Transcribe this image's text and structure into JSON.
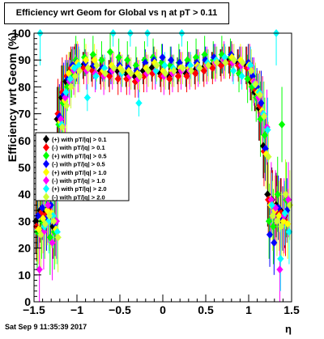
{
  "title": "Efficiency wrt Geom for Global vs   η at pT > 0.11",
  "timestamp": "Sat Sep  9 11:35:39 2017",
  "chart_data": {
    "type": "scatter",
    "title": "Efficiency wrt Geom for Global vs   η at pT > 0.11",
    "xlabel": "η",
    "ylabel": "Efficiency wrt Geom (%)",
    "xlim": [
      -1.5,
      1.5
    ],
    "ylim": [
      0,
      100
    ],
    "xticks": [
      "−1.5",
      "−1",
      "−0.5",
      "0",
      "0.5",
      "1",
      "1.5"
    ],
    "yticks": [
      "0",
      "10",
      "20",
      "30",
      "40",
      "50",
      "60",
      "70",
      "80",
      "90",
      "100"
    ],
    "grid": false,
    "legend_position": "middle-left",
    "series": [
      {
        "name": "(+) with pT/|q| > 0.1",
        "color": "#000000",
        "marker": "circle",
        "x": [
          -1.45,
          -1.4,
          -1.35,
          -1.3,
          -1.25,
          -1.2,
          -1.15,
          -1.1,
          -1.05,
          -1.0,
          -0.9,
          -0.8,
          -0.7,
          -0.6,
          -0.5,
          -0.4,
          -0.3,
          -0.2,
          -0.1,
          0.0,
          0.1,
          0.2,
          0.3,
          0.4,
          0.5,
          0.6,
          0.7,
          0.8,
          0.9,
          1.0,
          1.05,
          1.1,
          1.15,
          1.2,
          1.25,
          1.3,
          1.35,
          1.4,
          1.45
        ],
        "y": [
          30,
          34,
          33,
          35,
          28,
          68,
          76,
          82,
          86,
          88,
          88,
          87,
          86,
          85,
          86,
          85,
          84,
          86,
          87,
          85,
          84,
          86,
          85,
          86,
          87,
          88,
          89,
          90,
          89,
          88,
          82,
          78,
          72,
          58,
          40,
          38,
          36,
          34,
          32
        ]
      },
      {
        "name": "(-) with pT/|q| > 0.1",
        "color": "#ff0000",
        "marker": "circle",
        "x": [
          -1.45,
          -1.4,
          -1.35,
          -1.3,
          -1.25,
          -1.2,
          -1.15,
          -1.1,
          -1.05,
          -1.0,
          -0.9,
          -0.8,
          -0.7,
          -0.6,
          -0.5,
          -0.4,
          -0.3,
          -0.2,
          -0.1,
          0.0,
          0.1,
          0.2,
          0.3,
          0.4,
          0.5,
          0.6,
          0.7,
          0.8,
          0.9,
          1.0,
          1.05,
          1.1,
          1.15,
          1.2,
          1.25,
          1.3,
          1.35,
          1.4,
          1.45
        ],
        "y": [
          28,
          33,
          32,
          34,
          30,
          70,
          78,
          84,
          87,
          88,
          87,
          86,
          85,
          84,
          83,
          83,
          82,
          84,
          85,
          84,
          83,
          84,
          84,
          85,
          86,
          87,
          88,
          89,
          88,
          87,
          83,
          79,
          73,
          56,
          38,
          36,
          34,
          33,
          30
        ]
      },
      {
        "name": "(+) with pT/|q| > 0.5",
        "color": "#00ff00",
        "marker": "circle",
        "x": [
          -1.45,
          -1.4,
          -1.35,
          -1.3,
          -1.25,
          -1.2,
          -1.15,
          -1.1,
          -1.05,
          -1.0,
          -0.9,
          -0.8,
          -0.7,
          -0.6,
          -0.5,
          -0.4,
          -0.3,
          -0.2,
          -0.1,
          0.0,
          0.1,
          0.2,
          0.3,
          0.4,
          0.5,
          0.6,
          0.7,
          0.8,
          0.9,
          1.0,
          1.05,
          1.1,
          1.15,
          1.2,
          1.25,
          1.3,
          1.35,
          1.4,
          1.45
        ],
        "y": [
          26,
          30,
          40,
          24,
          26,
          66,
          74,
          80,
          85,
          90,
          91,
          92,
          90,
          93,
          91,
          90,
          88,
          90,
          91,
          89,
          88,
          89,
          90,
          91,
          92,
          90,
          92,
          91,
          85,
          83,
          80,
          76,
          68,
          62,
          30,
          28,
          40,
          66,
          38
        ]
      },
      {
        "name": "(-) with pT/|q| > 0.5",
        "color": "#0000ff",
        "marker": "circle",
        "x": [
          -1.45,
          -1.4,
          -1.35,
          -1.3,
          -1.25,
          -1.2,
          -1.15,
          -1.1,
          -1.05,
          -1.0,
          -0.9,
          -0.8,
          -0.7,
          -0.6,
          -0.5,
          -0.4,
          -0.3,
          -0.2,
          -0.1,
          0.0,
          0.1,
          0.2,
          0.3,
          0.4,
          0.5,
          0.6,
          0.7,
          0.8,
          0.9,
          1.0,
          1.05,
          1.1,
          1.15,
          1.2,
          1.25,
          1.3,
          1.35,
          1.4,
          1.45
        ],
        "y": [
          32,
          35,
          31,
          36,
          29,
          69,
          77,
          83,
          88,
          89,
          89,
          88,
          87,
          86,
          88,
          87,
          86,
          89,
          90,
          91,
          90,
          89,
          88,
          89,
          90,
          91,
          90,
          92,
          90,
          89,
          84,
          80,
          74,
          57,
          25,
          22,
          35,
          31,
          34
        ]
      },
      {
        "name": "(+) with pT/|q| > 1.0",
        "color": "#ffff00",
        "marker": "circle",
        "x": [
          -1.45,
          -1.4,
          -1.35,
          -1.3,
          -1.25,
          -1.2,
          -1.15,
          -1.1,
          -1.05,
          -1.0,
          -0.9,
          -0.8,
          -0.7,
          -0.6,
          -0.5,
          -0.4,
          -0.3,
          -0.2,
          -0.1,
          0.0,
          0.1,
          0.2,
          0.3,
          0.4,
          0.5,
          0.6,
          0.7,
          0.8,
          0.9,
          1.0,
          1.05,
          1.1,
          1.15,
          1.2,
          1.25,
          1.3,
          1.35,
          1.4,
          1.45
        ],
        "y": [
          27,
          31,
          34,
          33,
          27,
          67,
          75,
          85,
          87,
          89,
          90,
          90,
          86,
          88,
          87,
          86,
          85,
          87,
          89,
          86,
          86,
          87,
          87,
          88,
          88,
          89,
          90,
          91,
          90,
          88,
          82,
          78,
          71,
          55,
          36,
          34,
          32,
          30,
          29
        ]
      },
      {
        "name": "(-) with pT/|q| > 1.0",
        "color": "#ff00ff",
        "marker": "circle",
        "x": [
          -1.45,
          -1.4,
          -1.35,
          -1.3,
          -1.25,
          -1.2,
          -1.15,
          -1.1,
          -1.05,
          -1.0,
          -0.9,
          -0.8,
          -0.7,
          -0.6,
          -0.5,
          -0.4,
          -0.3,
          -0.2,
          -0.1,
          0.0,
          0.1,
          0.2,
          0.3,
          0.4,
          0.5,
          0.6,
          0.7,
          0.8,
          0.9,
          1.0,
          1.05,
          1.1,
          1.15,
          1.2,
          1.25,
          1.3,
          1.35,
          1.4,
          1.45
        ],
        "y": [
          12,
          26,
          36,
          22,
          30,
          68,
          76,
          82,
          86,
          87,
          86,
          85,
          84,
          86,
          85,
          84,
          83,
          85,
          86,
          84,
          85,
          86,
          86,
          87,
          88,
          89,
          90,
          89,
          88,
          87,
          82,
          76,
          70,
          65,
          38,
          35,
          12,
          32,
          38
        ]
      },
      {
        "name": "(+) with pT/|q| > 2.0",
        "color": "#00ffff",
        "marker": "circle",
        "x": [
          -1.45,
          -1.4,
          -1.35,
          -1.3,
          -1.25,
          -1.2,
          -1.15,
          -1.1,
          -1.05,
          -1.0,
          -0.9,
          -0.8,
          -0.7,
          -0.6,
          -0.5,
          -0.4,
          -0.3,
          -0.2,
          -0.1,
          0.0,
          0.1,
          0.2,
          0.3,
          0.4,
          0.5,
          0.6,
          0.7,
          0.8,
          0.9,
          1.0,
          1.05,
          1.1,
          1.15,
          1.2,
          1.25,
          1.3,
          1.35,
          1.4,
          1.45
        ],
        "y": [
          100,
          28,
          30,
          32,
          26,
          66,
          78,
          83,
          87,
          88,
          76,
          84,
          87,
          100,
          85,
          100,
          74,
          100,
          86,
          88,
          87,
          100,
          88,
          87,
          89,
          90,
          91,
          86,
          84,
          88,
          81,
          78,
          70,
          64,
          36,
          100,
          16,
          33,
          26
        ]
      },
      {
        "name": "(-) with pT/|q| > 2.0",
        "color": "#ccff33",
        "marker": "circle",
        "x": [
          -1.45,
          -1.4,
          -1.35,
          -1.3,
          -1.25,
          -1.2,
          -1.15,
          -1.1,
          -1.05,
          -1.0,
          -0.9,
          -0.8,
          -0.7,
          -0.6,
          -0.5,
          -0.4,
          -0.3,
          -0.2,
          -0.1,
          0.0,
          0.1,
          0.2,
          0.3,
          0.4,
          0.5,
          0.6,
          0.7,
          0.8,
          0.9,
          1.0,
          1.05,
          1.1,
          1.15,
          1.2,
          1.25,
          1.3,
          1.35,
          1.4,
          1.45
        ],
        "y": [
          25,
          29,
          32,
          30,
          24,
          65,
          73,
          80,
          84,
          86,
          87,
          88,
          85,
          87,
          86,
          85,
          84,
          86,
          88,
          85,
          86,
          87,
          86,
          87,
          88,
          89,
          89,
          90,
          89,
          86,
          81,
          77,
          69,
          54,
          32,
          30,
          28,
          40,
          36
        ]
      }
    ]
  }
}
